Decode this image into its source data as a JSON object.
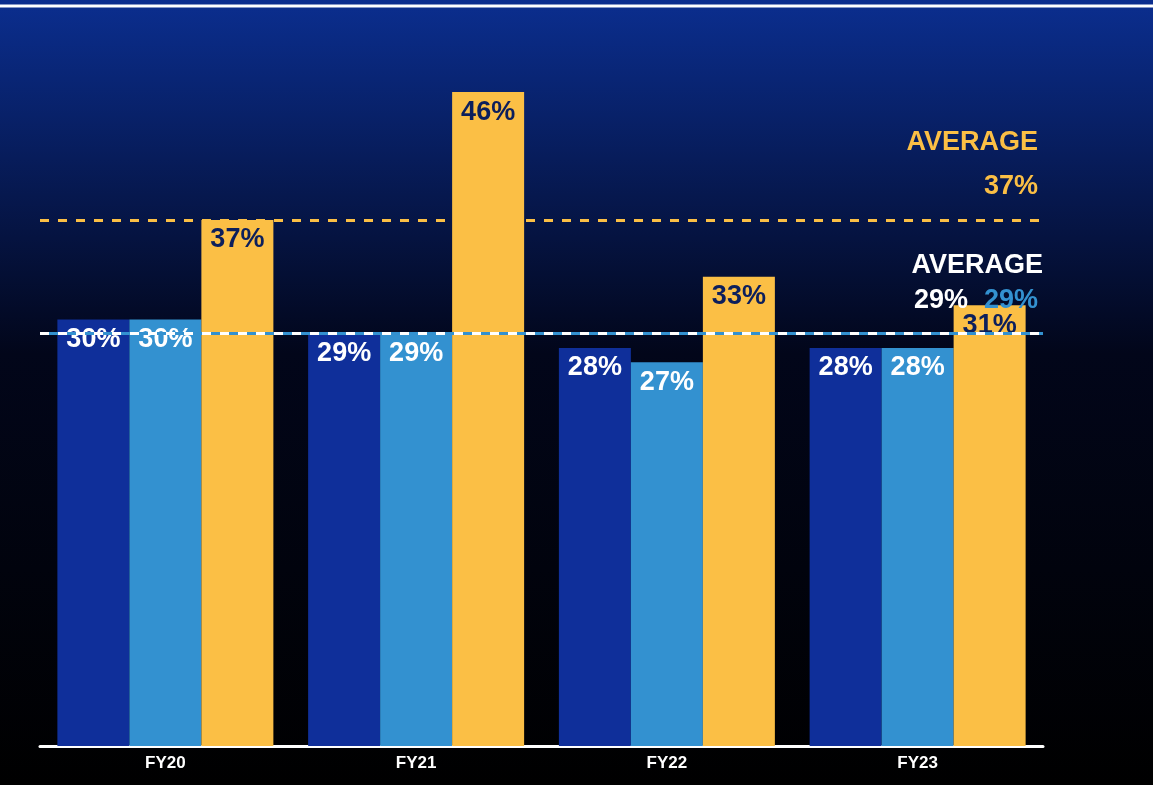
{
  "chart_data": {
    "type": "bar",
    "categories": [
      "FY20",
      "FY21",
      "FY22",
      "FY23"
    ],
    "series": [
      {
        "color": "#0f2f9a",
        "values": [
          30,
          29,
          28,
          28
        ],
        "value_labels": [
          "30%",
          "29%",
          "28%",
          "28%"
        ]
      },
      {
        "color": "#3391d0",
        "values": [
          30,
          29,
          27,
          28
        ],
        "value_labels": [
          "30%",
          "29%",
          "27%",
          "28%"
        ]
      },
      {
        "color": "#fbbf45",
        "values": [
          37,
          46,
          33,
          31
        ],
        "value_labels": [
          "37%",
          "46%",
          "33%",
          "31%"
        ]
      }
    ],
    "ref_lines": [
      {
        "axis": "y",
        "value": 37,
        "label": "AVERAGE\n37%",
        "color": "#fbbf45",
        "line_style": "dashed"
      },
      {
        "axis": "y",
        "value": 29,
        "label": "29%",
        "color": "#ffffff",
        "line_style": "dashed"
      },
      {
        "axis": "y",
        "value": 29,
        "label": "29%",
        "color": "#3391d0",
        "line_style": "dashed"
      }
    ],
    "annotations": [
      "AVERAGE"
    ],
    "tick_labels": "x"
  }
}
